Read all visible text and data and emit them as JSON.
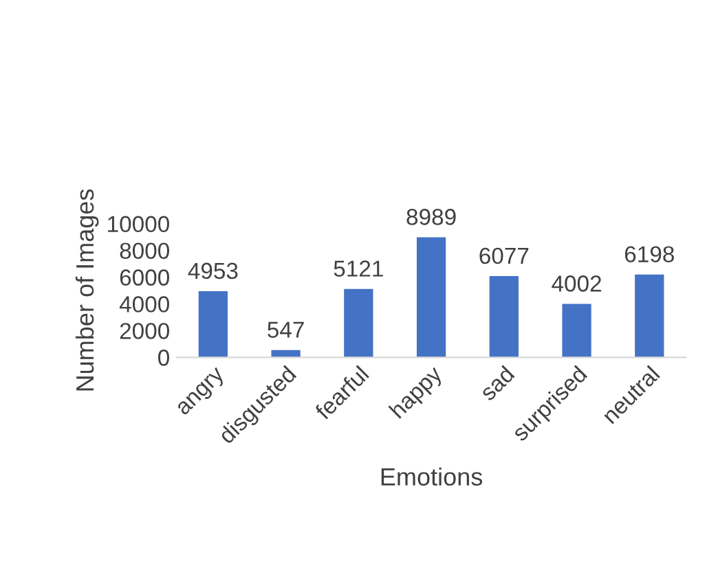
{
  "chart_data": {
    "type": "bar",
    "xlabel": "Emotions",
    "ylabel": "Number of Images",
    "categories": [
      "angry",
      "disgusted",
      "fearful",
      "happy",
      "sad",
      "surprised",
      "neutral"
    ],
    "values": [
      4953,
      547,
      5121,
      8989,
      6077,
      4002,
      6198
    ],
    "color": "#4472c4",
    "ylim": [
      0,
      10000
    ],
    "yticks": [
      0,
      2000,
      4000,
      6000,
      8000,
      10000
    ],
    "grid": false,
    "data_labels": true
  }
}
